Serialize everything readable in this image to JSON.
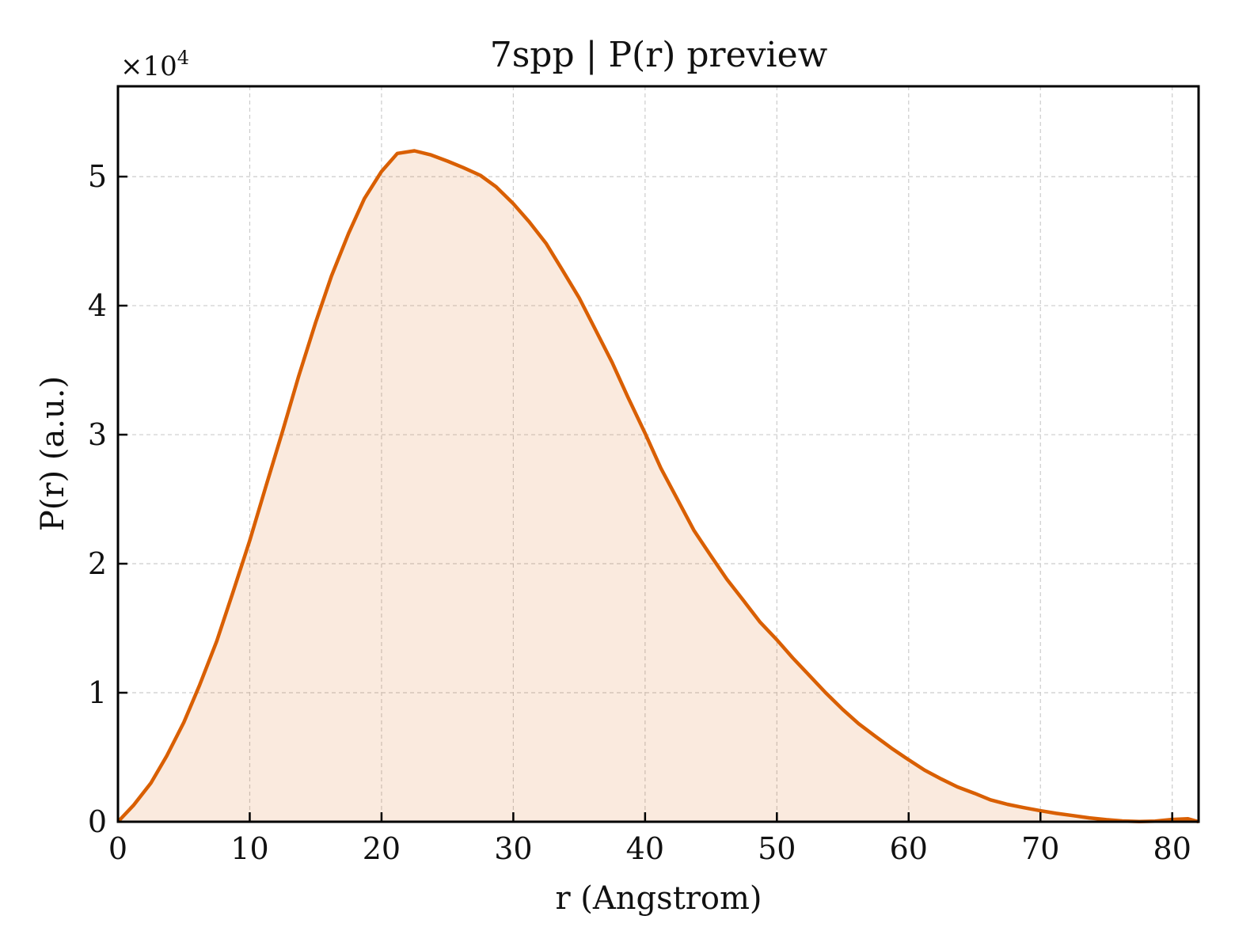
{
  "chart_data": {
    "type": "area",
    "title": "7spp | P(r) preview",
    "xlabel": "r (Angstrom)",
    "ylabel": "P(r) (a.u.)",
    "y_multiplier_label": "×10",
    "y_multiplier_exponent": "4",
    "xlim": [
      0,
      82
    ],
    "ylim": [
      0,
      57000
    ],
    "x_ticks": [
      0,
      10,
      20,
      30,
      40,
      50,
      60,
      70,
      80
    ],
    "x_tick_labels": [
      "0",
      "10",
      "20",
      "30",
      "40",
      "50",
      "60",
      "70",
      "80"
    ],
    "y_ticks": [
      0,
      10000,
      20000,
      30000,
      40000,
      50000
    ],
    "y_tick_labels": [
      "0",
      "1",
      "2",
      "3",
      "4",
      "5"
    ],
    "grid": true,
    "line_color": "#d95f02",
    "fill_color": "#d95f02",
    "series": [
      {
        "x": [
          0,
          1.2,
          2.5,
          3.7,
          5,
          6.2,
          7.5,
          8.7,
          10,
          11.2,
          12.5,
          13.7,
          15,
          16.2,
          17.5,
          18.7,
          20,
          21.2,
          22.5,
          23.7,
          25,
          26.2,
          27.5,
          28.7,
          30,
          31.2,
          32.5,
          33.7,
          35,
          36.2,
          37.5,
          38.7,
          40,
          41.2,
          42.5,
          43.7,
          45,
          46.2,
          47.5,
          48.7,
          50,
          51.2,
          52.5,
          53.7,
          55,
          56.2,
          57.5,
          58.7,
          60,
          61.2,
          62.5,
          63.7,
          65,
          66.2,
          67.5,
          68.7,
          70,
          71.2,
          72.5,
          73.7,
          75,
          76.2,
          77.5,
          78.7,
          80,
          81.2,
          82
        ],
        "y": [
          0,
          1300,
          3000,
          5100,
          7700,
          10600,
          14000,
          17700,
          21800,
          25900,
          30300,
          34500,
          38700,
          42300,
          45600,
          48300,
          50400,
          51800,
          52000,
          51700,
          51200,
          50700,
          50100,
          49200,
          47900,
          46500,
          44800,
          42800,
          40600,
          38200,
          35600,
          32900,
          30100,
          27400,
          24900,
          22600,
          20600,
          18800,
          17100,
          15500,
          14100,
          12700,
          11300,
          10000,
          8700,
          7600,
          6600,
          5700,
          4800,
          4000,
          3300,
          2700,
          2200,
          1700,
          1350,
          1100,
          850,
          650,
          470,
          300,
          160,
          60,
          20,
          50,
          180,
          230,
          0
        ]
      }
    ]
  }
}
